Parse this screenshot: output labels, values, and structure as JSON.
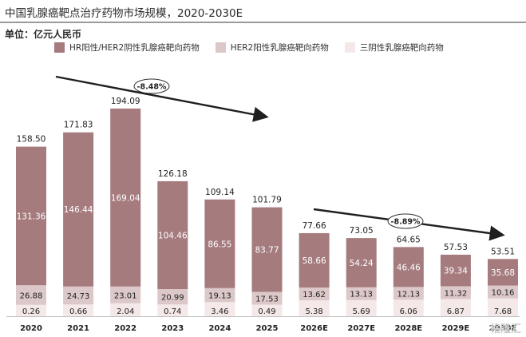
{
  "header": {
    "title": "中国乳腺癌靶点治疗药物市场规模，2020-2030E",
    "unit": "单位：亿元人民币"
  },
  "watermark": "格隆汇",
  "colors": {
    "hr_positive": "#a57b7e",
    "her2_positive": "#dcc7c9",
    "triple_negative": "#f4e8e8",
    "total_label": "#222222",
    "trend_arrow": "#1f1f1f"
  },
  "chart_data": {
    "type": "bar",
    "stacked": true,
    "title": "中国乳腺癌靶点治疗药物市场规模，2020-2030E",
    "ylabel": "单位：亿元人民币",
    "categories": [
      "2020",
      "2021",
      "2022",
      "2023",
      "2024",
      "2025",
      "2026E",
      "2027E",
      "2028E",
      "2029E",
      "2030E"
    ],
    "series": [
      {
        "name": "三阴性乳腺癌靶向药物",
        "values": [
          0.26,
          0.66,
          2.04,
          0.74,
          3.46,
          0.49,
          5.38,
          5.69,
          6.06,
          6.87,
          7.68
        ]
      },
      {
        "name": "HER2阳性乳腺癌靶向药物",
        "values": [
          26.88,
          24.73,
          23.01,
          20.99,
          19.13,
          17.53,
          13.62,
          13.13,
          12.13,
          11.32,
          10.16
        ]
      },
      {
        "name": "HR阳性/HER2阴性乳腺癌靶向药物",
        "values": [
          131.36,
          146.44,
          169.04,
          104.46,
          86.55,
          83.77,
          58.66,
          54.24,
          46.46,
          39.34,
          35.68
        ]
      }
    ],
    "totals": [
      158.5,
      171.83,
      194.09,
      126.18,
      109.14,
      101.79,
      77.66,
      73.05,
      64.65,
      57.53,
      53.51
    ],
    "legend": {
      "placement": "top",
      "entries": [
        "HR阳性/HER2阴性乳腺癌靶向药物",
        "HER2阳性乳腺癌靶向药物",
        "三阴性乳腺癌靶向药物"
      ]
    },
    "annotations": [
      {
        "label": "-8.48%",
        "from": "2020",
        "to": "2025"
      },
      {
        "label": "-8.89%",
        "from": "2026E",
        "to": "2030E"
      }
    ],
    "grid": false
  }
}
